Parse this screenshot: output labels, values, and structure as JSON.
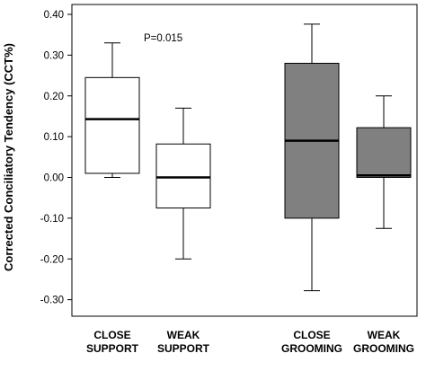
{
  "chart_data": {
    "type": "box",
    "ylabel": "Corrected Conciliatory Tendency (CCT%)",
    "ylim": [
      -0.33,
      0.42
    ],
    "yticks": [
      0.4,
      0.3,
      0.2,
      0.1,
      0.0,
      -0.1,
      -0.2,
      -0.3
    ],
    "ytick_labels": [
      "0.40",
      "0.30",
      "0.20",
      "0.10",
      "0.00",
      "-0.10",
      "-0.20",
      "-0.30"
    ],
    "annotation": "P=0.015",
    "boxes": [
      {
        "label": [
          "CLOSE",
          "SUPPORT"
        ],
        "whisker_low": 0.0,
        "q1": 0.01,
        "median": 0.143,
        "q3": 0.245,
        "whisker_high": 0.33,
        "fill": "#ffffff"
      },
      {
        "label": [
          "WEAK",
          "SUPPORT"
        ],
        "whisker_low": -0.2,
        "q1": -0.075,
        "median": 0.0,
        "q3": 0.082,
        "whisker_high": 0.17,
        "fill": "#ffffff"
      },
      {
        "label": [
          "CLOSE",
          "GROOMING"
        ],
        "whisker_low": -0.278,
        "q1": -0.1,
        "median": 0.09,
        "q3": 0.28,
        "whisker_high": 0.376,
        "fill": "#808080"
      },
      {
        "label": [
          "WEAK",
          "GROOMING"
        ],
        "whisker_low": -0.125,
        "q1": 0.0,
        "median": 0.005,
        "q3": 0.122,
        "whisker_high": 0.2,
        "fill": "#808080"
      }
    ]
  }
}
